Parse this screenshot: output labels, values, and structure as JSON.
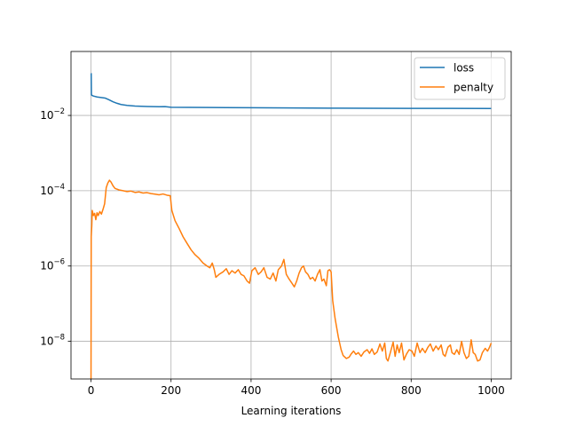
{
  "chart_data": {
    "type": "line",
    "title": "",
    "xlabel": "Learning iterations",
    "ylabel": "",
    "yscale": "log",
    "xlim": [
      -50,
      1050
    ],
    "ylim": [
      1e-09,
      0.5
    ],
    "grid": true,
    "legend_position": "top-right",
    "x_ticks": [
      0,
      200,
      400,
      600,
      800,
      1000
    ],
    "x_tick_labels": [
      "0",
      "200",
      "400",
      "600",
      "800",
      "1000"
    ],
    "y_ticks": [
      1e-08,
      1e-06,
      0.0001,
      0.01
    ],
    "y_tick_labels": [
      {
        "base": "10",
        "exp": "−8"
      },
      {
        "base": "10",
        "exp": "−6"
      },
      {
        "base": "10",
        "exp": "−4"
      },
      {
        "base": "10",
        "exp": "−2"
      }
    ],
    "series": [
      {
        "name": "loss",
        "color": "#1f77b4",
        "points": [
          [
            0,
            0.13
          ],
          [
            0.5,
            0.13
          ],
          [
            1,
            0.035
          ],
          [
            5,
            0.033
          ],
          [
            15,
            0.031
          ],
          [
            25,
            0.03
          ],
          [
            35,
            0.029
          ],
          [
            45,
            0.026
          ],
          [
            55,
            0.023
          ],
          [
            65,
            0.021
          ],
          [
            75,
            0.0195
          ],
          [
            90,
            0.0185
          ],
          [
            110,
            0.0178
          ],
          [
            140,
            0.0173
          ],
          [
            170,
            0.017
          ],
          [
            185,
            0.0172
          ],
          [
            200,
            0.0165
          ],
          [
            250,
            0.0164
          ],
          [
            300,
            0.0162
          ],
          [
            400,
            0.016
          ],
          [
            500,
            0.0158
          ],
          [
            600,
            0.0156
          ],
          [
            700,
            0.0155
          ],
          [
            800,
            0.0154
          ],
          [
            900,
            0.0154
          ],
          [
            1000,
            0.0153
          ]
        ]
      },
      {
        "name": "penalty",
        "color": "#ff7f0e",
        "points": [
          [
            0,
            1e-09
          ],
          [
            0.5,
            6e-06
          ],
          [
            2,
            1.2e-05
          ],
          [
            3,
            3e-05
          ],
          [
            6,
            2.2e-05
          ],
          [
            9,
            2.5e-05
          ],
          [
            12,
            1.7e-05
          ],
          [
            15,
            2.6e-05
          ],
          [
            18,
            2.2e-05
          ],
          [
            22,
            2.8e-05
          ],
          [
            26,
            2.4e-05
          ],
          [
            30,
            3.2e-05
          ],
          [
            34,
            4.5e-05
          ],
          [
            38,
            0.00012
          ],
          [
            42,
            0.00016
          ],
          [
            46,
            0.00019
          ],
          [
            50,
            0.00017
          ],
          [
            55,
            0.000135
          ],
          [
            60,
            0.000115
          ],
          [
            70,
            0.000105
          ],
          [
            80,
            0.0001
          ],
          [
            90,
            9.5e-05
          ],
          [
            100,
            9.8e-05
          ],
          [
            110,
            9e-05
          ],
          [
            120,
            9.3e-05
          ],
          [
            130,
            8.7e-05
          ],
          [
            140,
            8.9e-05
          ],
          [
            150,
            8.4e-05
          ],
          [
            160,
            8.1e-05
          ],
          [
            170,
            7.8e-05
          ],
          [
            180,
            8.2e-05
          ],
          [
            190,
            7.6e-05
          ],
          [
            198,
            7.4e-05
          ],
          [
            202,
            3e-05
          ],
          [
            210,
            1.6e-05
          ],
          [
            220,
            1e-05
          ],
          [
            230,
            6e-06
          ],
          [
            240,
            4e-06
          ],
          [
            250,
            2.7e-06
          ],
          [
            260,
            2e-06
          ],
          [
            270,
            1.6e-06
          ],
          [
            280,
            1.2e-06
          ],
          [
            290,
            1e-06
          ],
          [
            297,
            9e-07
          ],
          [
            303,
            1.2e-06
          ],
          [
            308,
            8e-07
          ],
          [
            312,
            5e-07
          ],
          [
            320,
            6e-07
          ],
          [
            330,
            7e-07
          ],
          [
            338,
            8.5e-07
          ],
          [
            345,
            6e-07
          ],
          [
            352,
            7.5e-07
          ],
          [
            360,
            6.5e-07
          ],
          [
            368,
            8e-07
          ],
          [
            375,
            6e-07
          ],
          [
            382,
            5.5e-07
          ],
          [
            390,
            4e-07
          ],
          [
            396,
            3.5e-07
          ],
          [
            402,
            7.5e-07
          ],
          [
            410,
            9e-07
          ],
          [
            418,
            6e-07
          ],
          [
            425,
            7e-07
          ],
          [
            432,
            9e-07
          ],
          [
            440,
            5e-07
          ],
          [
            448,
            4.5e-07
          ],
          [
            455,
            6.5e-07
          ],
          [
            462,
            4e-07
          ],
          [
            468,
            8e-07
          ],
          [
            476,
            1e-06
          ],
          [
            482,
            1.5e-06
          ],
          [
            488,
            6e-07
          ],
          [
            495,
            4.5e-07
          ],
          [
            502,
            3.5e-07
          ],
          [
            508,
            2.8e-07
          ],
          [
            514,
            4e-07
          ],
          [
            520,
            6.5e-07
          ],
          [
            526,
            9e-07
          ],
          [
            531,
            1e-06
          ],
          [
            536,
            7e-07
          ],
          [
            542,
            6e-07
          ],
          [
            548,
            4.5e-07
          ],
          [
            554,
            5e-07
          ],
          [
            560,
            4e-07
          ],
          [
            566,
            6e-07
          ],
          [
            572,
            8e-07
          ],
          [
            577,
            4e-07
          ],
          [
            582,
            4.5e-07
          ],
          [
            588,
            3e-07
          ],
          [
            592,
            7.5e-07
          ],
          [
            596,
            8e-07
          ],
          [
            600,
            7e-07
          ],
          [
            604,
            1.2e-07
          ],
          [
            610,
            4e-08
          ],
          [
            618,
            1.3e-08
          ],
          [
            625,
            6e-09
          ],
          [
            630,
            4.2e-09
          ],
          [
            638,
            3.5e-09
          ],
          [
            645,
            3.8e-09
          ],
          [
            650,
            4.6e-09
          ],
          [
            656,
            5.5e-09
          ],
          [
            662,
            4.5e-09
          ],
          [
            668,
            5e-09
          ],
          [
            675,
            4e-09
          ],
          [
            682,
            5.2e-09
          ],
          [
            690,
            6e-09
          ],
          [
            696,
            4.8e-09
          ],
          [
            702,
            6.3e-09
          ],
          [
            708,
            4.5e-09
          ],
          [
            715,
            5.2e-09
          ],
          [
            722,
            8.5e-09
          ],
          [
            728,
            5.5e-09
          ],
          [
            734,
            9e-09
          ],
          [
            738,
            3.5e-09
          ],
          [
            742,
            3e-09
          ],
          [
            748,
            5e-09
          ],
          [
            755,
            9.5e-09
          ],
          [
            760,
            4e-09
          ],
          [
            765,
            8e-09
          ],
          [
            770,
            5e-09
          ],
          [
            776,
            9e-09
          ],
          [
            782,
            3.2e-09
          ],
          [
            788,
            4.5e-09
          ],
          [
            795,
            6e-09
          ],
          [
            802,
            5.5e-09
          ],
          [
            808,
            4e-09
          ],
          [
            815,
            9e-09
          ],
          [
            822,
            5e-09
          ],
          [
            828,
            6.5e-09
          ],
          [
            835,
            5e-09
          ],
          [
            842,
            7e-09
          ],
          [
            848,
            8.5e-09
          ],
          [
            855,
            5.5e-09
          ],
          [
            862,
            7.5e-09
          ],
          [
            868,
            6e-09
          ],
          [
            875,
            8e-09
          ],
          [
            880,
            4.5e-09
          ],
          [
            885,
            4e-09
          ],
          [
            892,
            7e-09
          ],
          [
            898,
            8e-09
          ],
          [
            902,
            5e-09
          ],
          [
            908,
            4.5e-09
          ],
          [
            914,
            6e-09
          ],
          [
            920,
            4.5e-09
          ],
          [
            926,
            1e-08
          ],
          [
            932,
            5e-09
          ],
          [
            938,
            3.5e-09
          ],
          [
            944,
            4e-09
          ],
          [
            950,
            1.1e-08
          ],
          [
            955,
            5e-09
          ],
          [
            960,
            4.5e-09
          ],
          [
            966,
            3e-09
          ],
          [
            972,
            3.2e-09
          ],
          [
            978,
            5e-09
          ],
          [
            985,
            6.5e-09
          ],
          [
            991,
            5.5e-09
          ],
          [
            996,
            7e-09
          ],
          [
            1000,
            9e-09
          ]
        ]
      }
    ]
  }
}
